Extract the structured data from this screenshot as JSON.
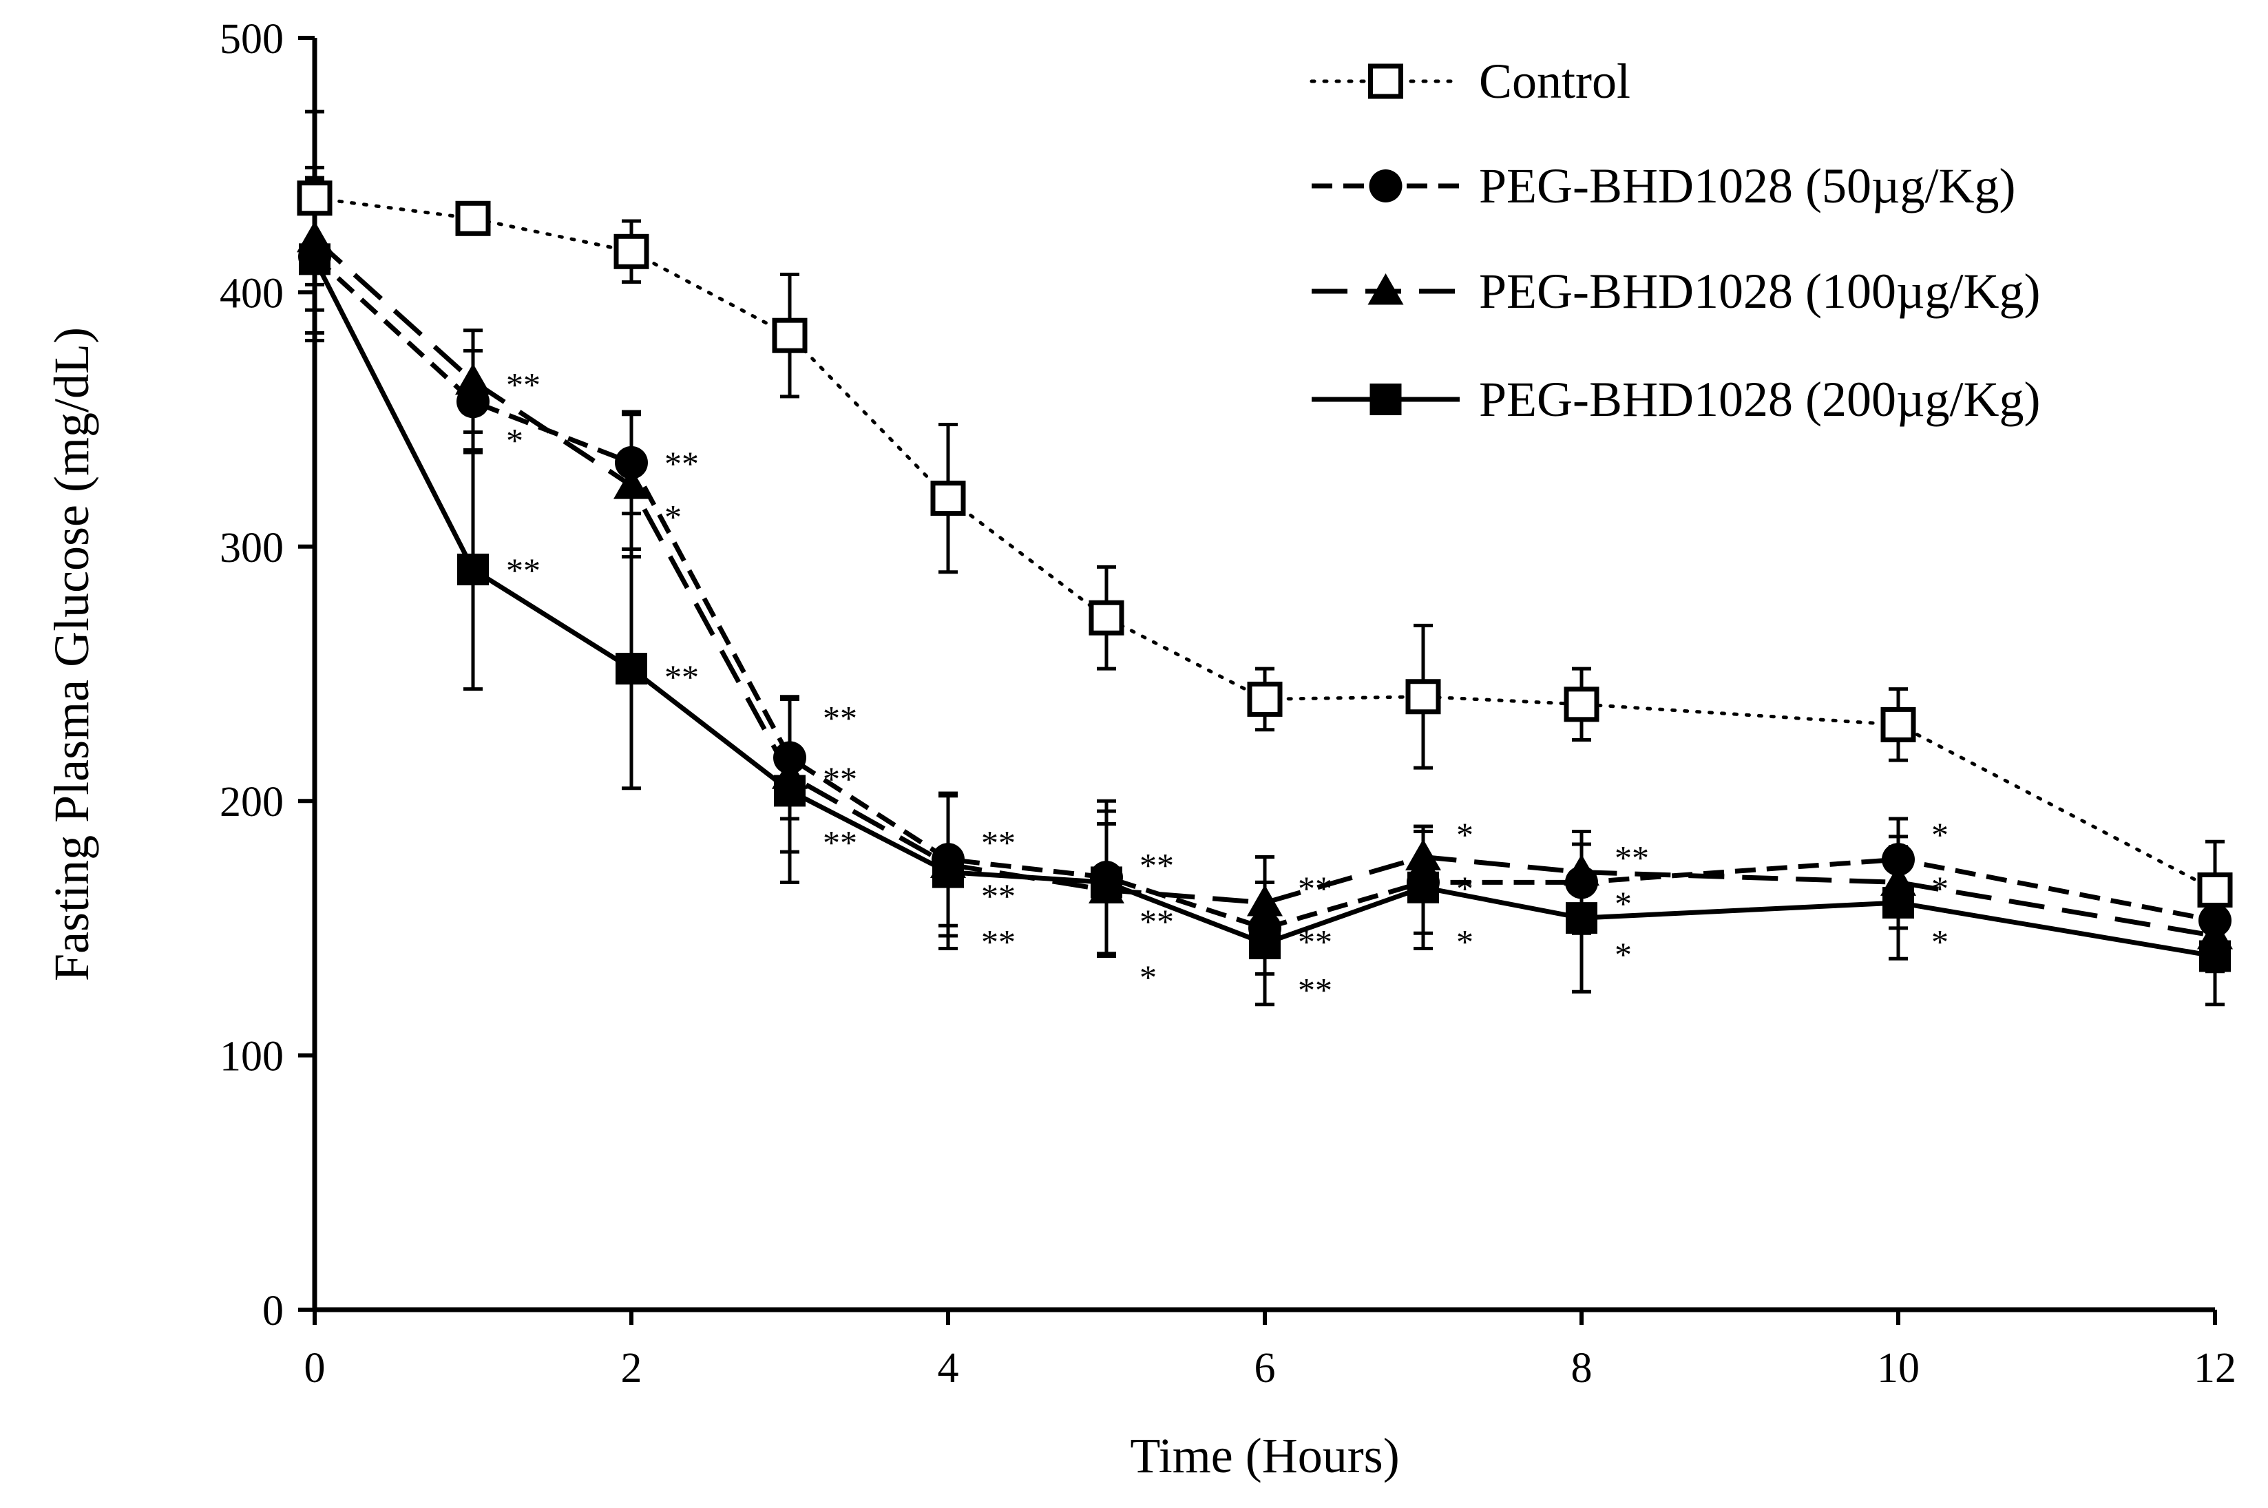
{
  "chart_data": {
    "type": "line",
    "title": "",
    "xlabel": "Time (Hours)",
    "ylabel": "Fasting Plasma Glucose (mg/dL)",
    "x": [
      0,
      1,
      2,
      3,
      4,
      5,
      6,
      7,
      8,
      10,
      12
    ],
    "x_ticks": [
      "0",
      "2",
      "4",
      "6",
      "8",
      "10",
      "12"
    ],
    "y_ticks": [
      "0",
      "100",
      "200",
      "300",
      "400",
      "500"
    ],
    "xlim": [
      0,
      12
    ],
    "ylim": [
      0,
      500
    ],
    "grid": false,
    "legend_position": "top-right",
    "series": [
      {
        "name": "Control",
        "marker": "square-open",
        "line": "dotted",
        "values": [
          437,
          429,
          416,
          383,
          319,
          272,
          240,
          241,
          238,
          230,
          165
        ],
        "errors": [
          34,
          4,
          12,
          24,
          29,
          20,
          12,
          28,
          14,
          14,
          19
        ]
      },
      {
        "name": "PEG-BHD1028 (50µg/Kg)",
        "marker": "circle",
        "line": "short-dash",
        "values": [
          414,
          357,
          333,
          217,
          177,
          170,
          150,
          168,
          168,
          177,
          153
        ],
        "errors": [
          30,
          20,
          20,
          24,
          26,
          30,
          18,
          20,
          20,
          16,
          14
        ]
      },
      {
        "name": "PEG-BHD1028 (100µg/Kg)",
        "marker": "triangle",
        "line": "long-dash",
        "values": [
          421,
          365,
          324,
          210,
          175,
          165,
          160,
          178,
          172,
          168,
          147
        ],
        "errors": [
          28,
          20,
          28,
          30,
          28,
          26,
          18,
          12,
          16,
          18,
          14
        ]
      },
      {
        "name": "PEG-BHD1028 (200µg/Kg)",
        "marker": "square",
        "line": "solid",
        "values": [
          413,
          291,
          252,
          204,
          172,
          168,
          144,
          166,
          154,
          160,
          139
        ],
        "errors": [
          32,
          47,
          47,
          36,
          30,
          28,
          24,
          24,
          29,
          22,
          19
        ]
      }
    ],
    "annotations": [
      {
        "x": 1,
        "y": 364,
        "text": "**"
      },
      {
        "x": 1,
        "y": 342,
        "text": "*"
      },
      {
        "x": 2,
        "y": 333,
        "text": "**"
      },
      {
        "x": 2,
        "y": 312,
        "text": "*"
      },
      {
        "x": 1,
        "y": 291,
        "text": "**"
      },
      {
        "x": 2,
        "y": 249,
        "text": "**"
      },
      {
        "x": 3,
        "y": 233,
        "text": "**"
      },
      {
        "x": 3,
        "y": 209,
        "text": "**"
      },
      {
        "x": 3,
        "y": 184,
        "text": "**"
      },
      {
        "x": 4,
        "y": 184,
        "text": "**"
      },
      {
        "x": 4,
        "y": 163,
        "text": "**"
      },
      {
        "x": 4,
        "y": 145,
        "text": "**"
      },
      {
        "x": 5,
        "y": 175,
        "text": "**"
      },
      {
        "x": 5,
        "y": 153,
        "text": "**"
      },
      {
        "x": 5,
        "y": 131,
        "text": "*"
      },
      {
        "x": 6,
        "y": 166,
        "text": "**"
      },
      {
        "x": 6,
        "y": 145,
        "text": "**"
      },
      {
        "x": 6,
        "y": 126,
        "text": "**"
      },
      {
        "x": 7,
        "y": 187,
        "text": "*"
      },
      {
        "x": 7,
        "y": 166,
        "text": "*"
      },
      {
        "x": 7,
        "y": 145,
        "text": "*"
      },
      {
        "x": 8,
        "y": 178,
        "text": "**"
      },
      {
        "x": 8,
        "y": 160,
        "text": "*"
      },
      {
        "x": 8,
        "y": 140,
        "text": "*"
      },
      {
        "x": 10,
        "y": 187,
        "text": "*"
      },
      {
        "x": 10,
        "y": 166,
        "text": "*"
      },
      {
        "x": 10,
        "y": 145,
        "text": "*"
      }
    ]
  }
}
